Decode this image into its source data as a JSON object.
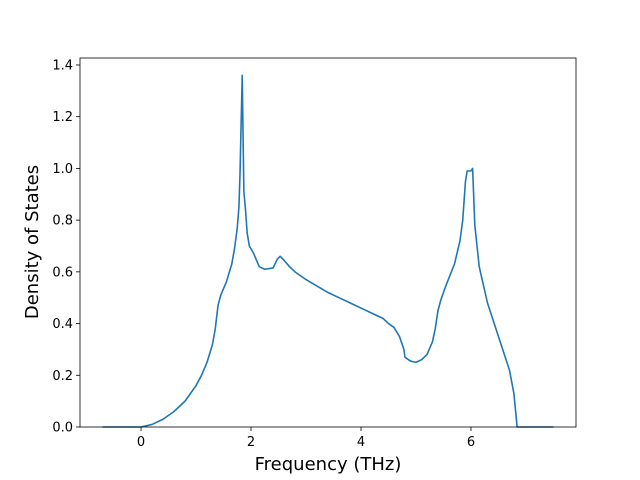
{
  "chart_data": {
    "type": "line",
    "xlabel": "Frequency (THz)",
    "ylabel": "Density of States",
    "xlim": [
      -1.11,
      7.91
    ],
    "ylim": [
      0,
      1.427
    ],
    "xticks": [
      0,
      2,
      4,
      6
    ],
    "yticks": [
      {
        "value": 0,
        "label": "0.0"
      },
      0.2,
      0.4,
      0.6,
      0.8,
      {
        "value": 1,
        "label": "1.0"
      },
      1.2,
      1.4
    ],
    "grid": false,
    "series": [
      {
        "color": "#1f77b4",
        "x": [
          -0.7,
          -0.2,
          0,
          0.2,
          0.4,
          0.6,
          0.8,
          1.0,
          1.1,
          1.2,
          1.3,
          1.35,
          1.4,
          1.45,
          1.55,
          1.65,
          1.7,
          1.75,
          1.78,
          1.8,
          1.84,
          1.87,
          1.9,
          1.93,
          1.97,
          2.05,
          2.15,
          2.25,
          2.4,
          2.48,
          2.53,
          2.6,
          2.7,
          2.8,
          3.0,
          3.2,
          3.4,
          3.6,
          3.8,
          4.0,
          4.2,
          4.4,
          4.5,
          4.6,
          4.7,
          4.78,
          4.8,
          4.9,
          5.0,
          5.1,
          5.2,
          5.3,
          5.35,
          5.4,
          5.45,
          5.55,
          5.7,
          5.8,
          5.85,
          5.9,
          5.93,
          6.0,
          6.03,
          6.07,
          6.15,
          6.3,
          6.5,
          6.7,
          6.78,
          6.84,
          7.0,
          7.5
        ],
        "values": [
          0,
          0,
          0,
          0.01,
          0.03,
          0.06,
          0.1,
          0.16,
          0.2,
          0.25,
          0.32,
          0.38,
          0.47,
          0.51,
          0.56,
          0.63,
          0.69,
          0.77,
          0.85,
          0.98,
          1.36,
          0.91,
          0.84,
          0.75,
          0.7,
          0.67,
          0.62,
          0.61,
          0.615,
          0.65,
          0.66,
          0.645,
          0.62,
          0.6,
          0.57,
          0.545,
          0.52,
          0.5,
          0.48,
          0.46,
          0.44,
          0.42,
          0.4,
          0.385,
          0.35,
          0.3,
          0.27,
          0.255,
          0.25,
          0.26,
          0.28,
          0.33,
          0.38,
          0.45,
          0.49,
          0.55,
          0.63,
          0.72,
          0.8,
          0.95,
          0.99,
          0.99,
          1.0,
          0.78,
          0.62,
          0.48,
          0.35,
          0.22,
          0.13,
          0,
          0,
          0
        ]
      }
    ]
  }
}
